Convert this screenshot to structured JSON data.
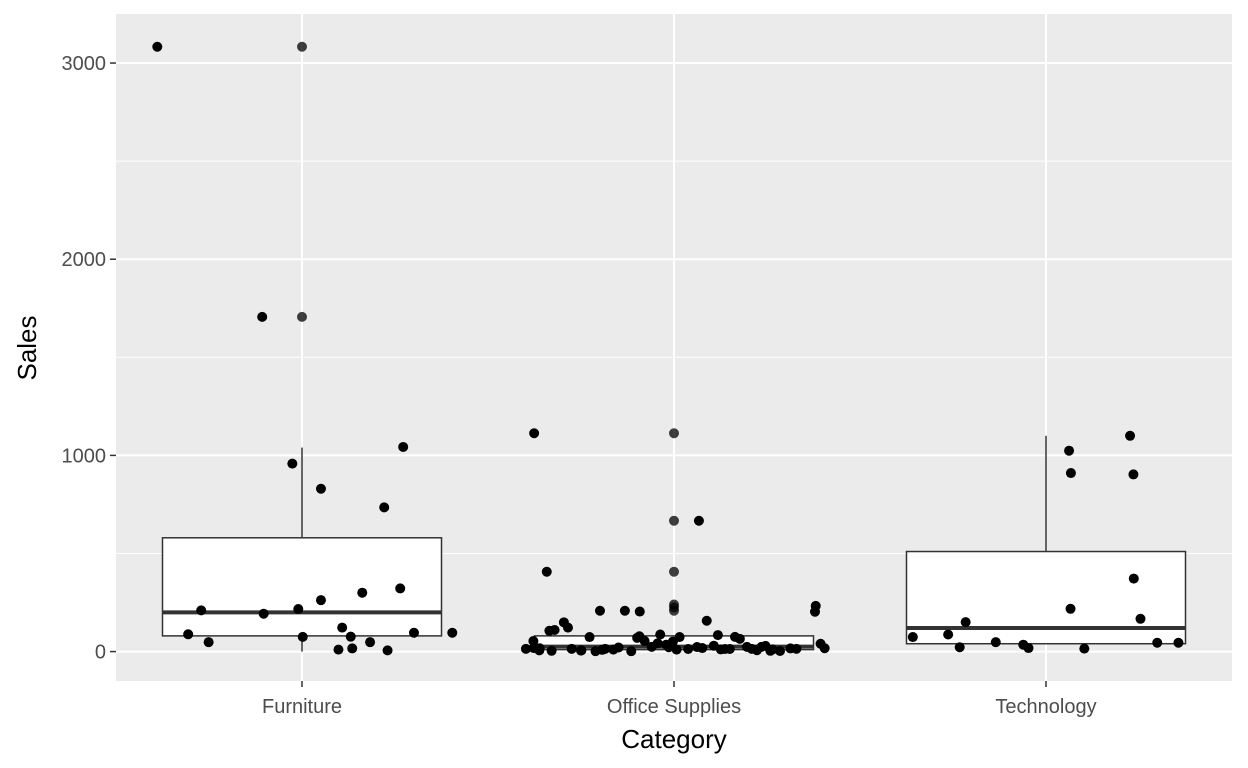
{
  "chart_data": {
    "type": "boxplot",
    "xlabel": "Category",
    "ylabel": "Sales",
    "categories": [
      "Furniture",
      "Office Supplies",
      "Technology"
    ],
    "ylim": [
      -150,
      3250
    ],
    "y_ticks": [
      0,
      1000,
      2000,
      3000
    ],
    "grid": true,
    "colors": {
      "panel_background": "#ebebeb",
      "grid_line": "#ffffff",
      "box_fill": "#ffffff",
      "box_stroke": "#333333",
      "point": "#000000"
    },
    "boxes": [
      {
        "category": "Furniture",
        "lower_whisker": 0,
        "q1": 80,
        "median": 200,
        "q3": 580,
        "upper_whisker": 1040
      },
      {
        "category": "Office Supplies",
        "lower_whisker": 0,
        "q1": 10,
        "median": 25,
        "q3": 80,
        "upper_whisker": 80
      },
      {
        "category": "Technology",
        "lower_whisker": 40,
        "q1": 40,
        "median": 120,
        "q3": 510,
        "upper_whisker": 1100
      }
    ],
    "outliers": [
      {
        "category": "Furniture",
        "values": [
          3083,
          1706
        ]
      },
      {
        "category": "Office Supplies",
        "values": [
          1113,
          667,
          407,
          240,
          225,
          208
        ]
      }
    ],
    "jitter_points": [
      {
        "category": "Furniture",
        "x": [
          -0.389,
          -0.306,
          -0.271,
          -0.251,
          -0.107,
          -0.103,
          -0.026,
          -0.01,
          0.002,
          0.051,
          0.051,
          0.098,
          0.108,
          0.131,
          0.135,
          0.162,
          0.183,
          0.221,
          0.23,
          0.264,
          0.272,
          0.301,
          0.404
        ],
        "y": [
          3083,
          88,
          210,
          48,
          1706,
          193,
          958,
          217,
          75,
          830,
          262,
          10,
          122,
          76,
          16,
          300,
          48,
          735,
          6,
          322,
          1043,
          96,
          96
        ]
      },
      {
        "category": "Office Supplies",
        "x": [
          -0.398,
          -0.378,
          -0.377,
          -0.376,
          -0.362,
          -0.361,
          -0.342,
          -0.335,
          -0.329,
          -0.321,
          -0.296,
          -0.285,
          -0.275,
          -0.25,
          -0.249,
          -0.227,
          -0.211,
          -0.199,
          -0.193,
          -0.185,
          -0.163,
          -0.149,
          -0.132,
          -0.115,
          -0.099,
          -0.093,
          -0.092,
          -0.079,
          -0.06,
          -0.044,
          -0.037,
          -0.021,
          -0.014,
          -0.003,
          0.007,
          0.015,
          0.038,
          0.062,
          0.067,
          0.076,
          0.088,
          0.107,
          0.118,
          0.126,
          0.137,
          0.15,
          0.164,
          0.177,
          0.196,
          0.209,
          0.221,
          0.223,
          0.235,
          0.246,
          0.259,
          0.265,
          0.285,
          0.313,
          0.329,
          0.379,
          0.381,
          0.394,
          0.405
        ],
        "y": [
          14,
          54,
          18,
          1113,
          6,
          17,
          407,
          106,
          4,
          110,
          149,
          122,
          14,
          5,
          6,
          74,
          2,
          208,
          9,
          14,
          10,
          21,
          208,
          2,
          70,
          78,
          204,
          54,
          24,
          42,
          87,
          35,
          22,
          51,
          10,
          74,
          13,
          23,
          667,
          18,
          157,
          30,
          84,
          11,
          13,
          13,
          75,
          65,
          24,
          14,
          10,
          7,
          24,
          29,
          4,
          11,
          3,
          16,
          14,
          203,
          233,
          40,
          17
        ]
      },
      {
        "category": "Technology",
        "x": [
          -0.358,
          -0.263,
          -0.232,
          -0.216,
          -0.135,
          -0.061,
          -0.047,
          0.062,
          0.066,
          0.067,
          0.103,
          0.226,
          0.235,
          0.236,
          0.254,
          0.299,
          0.356
        ],
        "y": [
          74,
          87,
          22,
          150,
          48,
          35,
          18,
          1024,
          218,
          910,
          15,
          1100,
          903,
          372,
          167,
          45,
          45
        ]
      }
    ]
  }
}
